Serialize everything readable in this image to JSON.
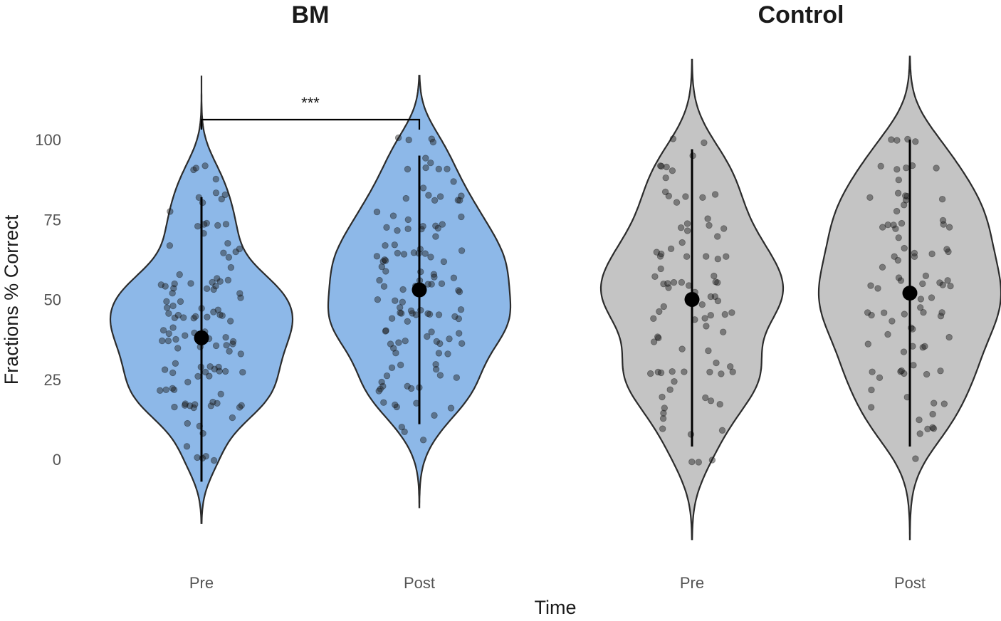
{
  "chart_data": {
    "type": "violin",
    "panels": [
      {
        "title": "BM",
        "fill_color": "#8db8e8",
        "groups": [
          {
            "category": "Pre",
            "mean": 38,
            "whisker": [
              -7,
              82
            ],
            "violin_range": [
              -20,
              120
            ],
            "points": [
              0,
              0,
              0,
              0,
              5,
              8,
              10,
              11,
              13,
              17,
              17,
              17,
              17,
              17,
              17,
              17,
              17,
              17,
              17,
              18,
              20,
              22,
              22,
              22,
              22,
              25,
              25,
              27,
              27,
              27,
              27,
              27,
              28,
              28,
              28,
              28,
              28,
              30,
              30,
              33,
              33,
              35,
              35,
              36,
              36,
              36,
              36,
              37,
              37,
              38,
              38,
              39,
              39,
              39,
              39,
              40,
              40,
              42,
              44,
              44,
              45,
              45,
              45,
              45,
              45,
              45,
              46,
              46,
              46,
              46,
              47,
              48,
              48,
              50,
              50,
              50,
              51,
              52,
              53,
              54,
              54,
              55,
              55,
              55,
              55,
              55,
              55,
              56,
              56,
              57,
              57,
              60,
              63,
              64,
              64,
              65,
              67,
              68,
              70,
              72,
              73,
              73,
              73,
              74,
              77,
              80,
              82,
              82,
              82,
              83,
              87,
              91,
              91,
              91
            ]
          },
          {
            "category": "Post",
            "mean": 53,
            "whisker": [
              11,
              95
            ],
            "violin_range": [
              -15,
              120
            ],
            "points": [
              6,
              9,
              11,
              14,
              17,
              17,
              17,
              17,
              17,
              22,
              22,
              22,
              22,
              22,
              22,
              25,
              25,
              27,
              27,
              28,
              28,
              29,
              30,
              32,
              33,
              33,
              35,
              36,
              36,
              36,
              37,
              37,
              38,
              38,
              38,
              39,
              39,
              40,
              41,
              43,
              44,
              44,
              45,
              45,
              45,
              45,
              45,
              45,
              46,
              46,
              46,
              46,
              46,
              48,
              49,
              50,
              50,
              52,
              53,
              54,
              55,
              55,
              55,
              55,
              55,
              55,
              55,
              56,
              57,
              57,
              58,
              59,
              60,
              61,
              62,
              63,
              63,
              64,
              64,
              64,
              64,
              64,
              64,
              64,
              65,
              66,
              67,
              68,
              70,
              71,
              72,
              72,
              73,
              73,
              73,
              73,
              73,
              74,
              75,
              77,
              78,
              80,
              82,
              82,
              82,
              82,
              82,
              83,
              84,
              87,
              91,
              91,
              91,
              91,
              92,
              95,
              100,
              100,
              100,
              100
            ]
          }
        ]
      },
      {
        "title": "Control",
        "fill_color": "#c4c4c4",
        "groups": [
          {
            "category": "Pre",
            "mean": 50,
            "whisker": [
              4,
              97
            ],
            "violin_range": [
              -25,
              125
            ],
            "points": [
              0,
              0,
              0,
              8,
              9,
              10,
              12,
              15,
              17,
              18,
              18,
              20,
              20,
              22,
              25,
              27,
              27,
              27,
              27,
              27,
              27,
              28,
              28,
              30,
              30,
              33,
              35,
              36,
              38,
              39,
              40,
              42,
              44,
              45,
              45,
              46,
              46,
              46,
              46,
              48,
              48,
              50,
              50,
              50,
              53,
              54,
              55,
              55,
              55,
              55,
              55,
              55,
              55,
              57,
              58,
              60,
              62,
              64,
              64,
              64,
              64,
              64,
              64,
              65,
              67,
              70,
              72,
              73,
              73,
              73,
              73,
              75,
              80,
              82,
              82,
              82,
              82,
              84,
              88,
              91,
              91,
              91,
              91,
              95,
              100,
              100
            ]
          },
          {
            "category": "Post",
            "mean": 52,
            "whisker": [
              4,
              100
            ],
            "violin_range": [
              -25,
              126
            ],
            "points": [
              0,
              9,
              9,
              9,
              9,
              12,
              15,
              17,
              18,
              18,
              20,
              22,
              25,
              27,
              27,
              27,
              27,
              28,
              28,
              30,
              33,
              35,
              36,
              36,
              37,
              38,
              39,
              40,
              42,
              44,
              44,
              45,
              45,
              45,
              46,
              46,
              46,
              48,
              50,
              50,
              53,
              55,
              55,
              55,
              55,
              55,
              55,
              55,
              57,
              58,
              60,
              62,
              64,
              64,
              64,
              64,
              64,
              65,
              67,
              70,
              72,
              73,
              73,
              73,
              73,
              73,
              73,
              75,
              78,
              80,
              82,
              82,
              82,
              82,
              82,
              84,
              87,
              91,
              91,
              91,
              91,
              91,
              100,
              100,
              100,
              100
            ]
          }
        ]
      }
    ],
    "significance": {
      "label": "***",
      "between": [
        "Pre",
        "Post"
      ],
      "panel": "BM"
    },
    "ylabel": "Fractions % Correct",
    "xlabel": "Time",
    "yticks": [
      0,
      25,
      50,
      75,
      100
    ],
    "ylim": [
      -27,
      127
    ],
    "grid": false,
    "legend": "none"
  }
}
